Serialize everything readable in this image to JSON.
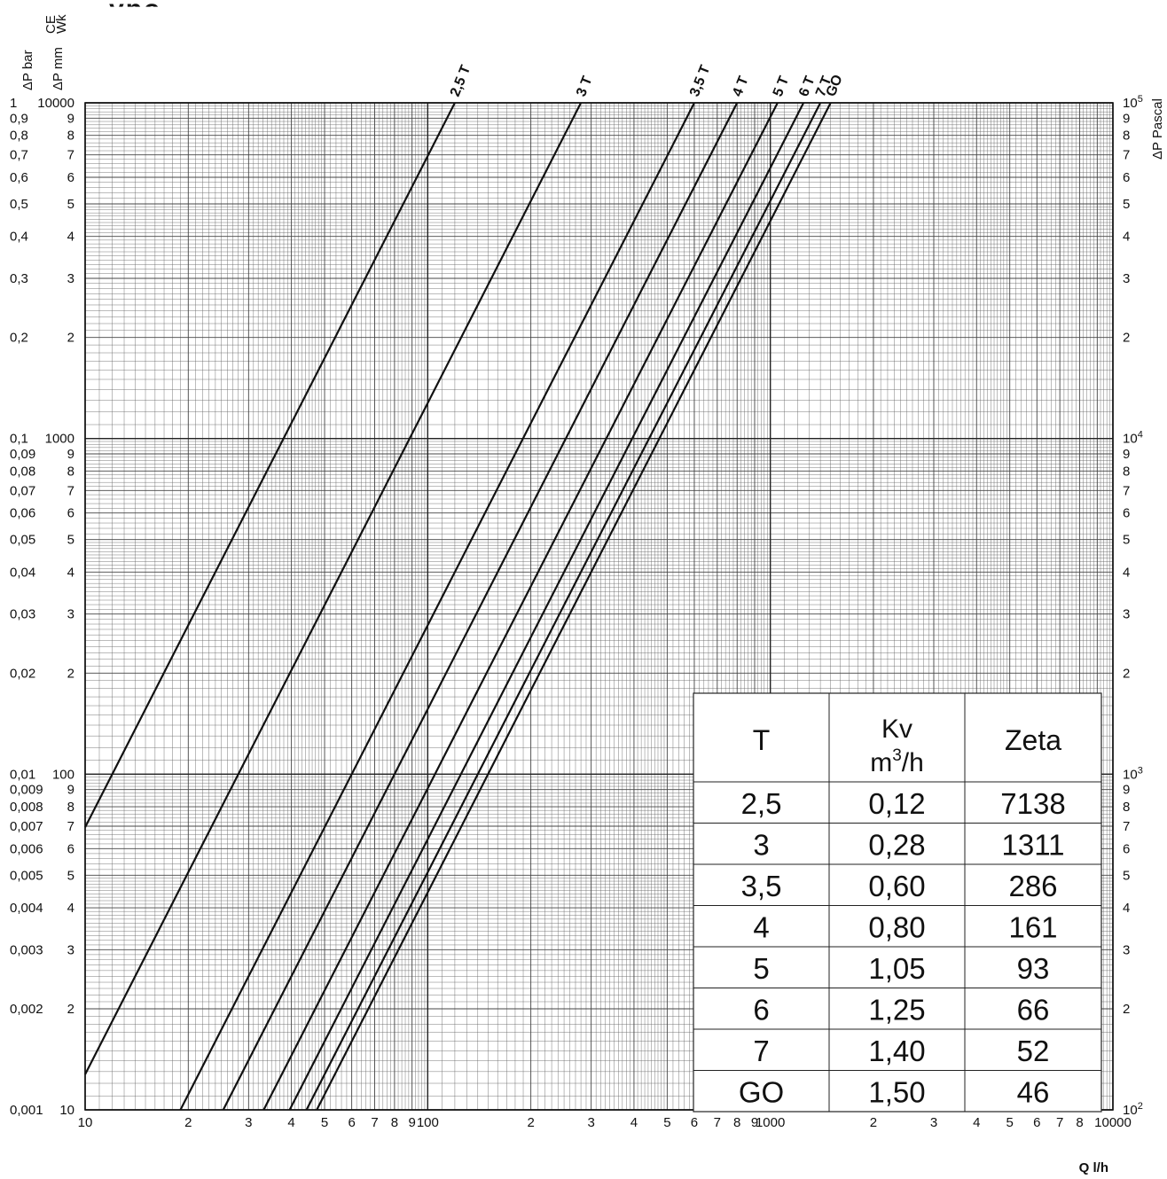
{
  "header": {
    "title_fragment": "...ypo...",
    "left_axis_bar_label": "ΔP bar",
    "left_axis_mm_label": "ΔP mm",
    "left_axis_mm_sup1": "CE",
    "left_axis_mm_sup2": "Wk",
    "right_axis_label": "ΔP Pascal"
  },
  "chart_data": {
    "type": "line",
    "x_scale": "log",
    "y_scale": "log",
    "x_unit": "l/h",
    "xlabel": "Q l/h",
    "xlim": [
      10,
      10000
    ],
    "ylim_bar": [
      0.001,
      1
    ],
    "ylim_mmCE": [
      10,
      10000
    ],
    "ylim_pascal": [
      100,
      100000
    ],
    "grid": true,
    "x_tick_labels": [
      {
        "v": 10,
        "t": "10"
      },
      {
        "v": 20,
        "t": "2"
      },
      {
        "v": 30,
        "t": "3"
      },
      {
        "v": 40,
        "t": "4"
      },
      {
        "v": 50,
        "t": "5"
      },
      {
        "v": 60,
        "t": "6"
      },
      {
        "v": 70,
        "t": "7"
      },
      {
        "v": 80,
        "t": "8"
      },
      {
        "v": 90,
        "t": "9"
      },
      {
        "v": 100,
        "t": "100"
      },
      {
        "v": 200,
        "t": "2"
      },
      {
        "v": 300,
        "t": "3"
      },
      {
        "v": 400,
        "t": "4"
      },
      {
        "v": 500,
        "t": "5"
      },
      {
        "v": 600,
        "t": "6"
      },
      {
        "v": 700,
        "t": "7"
      },
      {
        "v": 800,
        "t": "8"
      },
      {
        "v": 900,
        "t": "9"
      },
      {
        "v": 1000,
        "t": "1000"
      },
      {
        "v": 2000,
        "t": "2"
      },
      {
        "v": 3000,
        "t": "3"
      },
      {
        "v": 4000,
        "t": "4"
      },
      {
        "v": 5000,
        "t": "5"
      },
      {
        "v": 6000,
        "t": "6"
      },
      {
        "v": 7000,
        "t": "7"
      },
      {
        "v": 8000,
        "t": "8"
      },
      {
        "v": 10000,
        "t": "10000"
      }
    ],
    "y_tick_labels_bar": [
      {
        "v": 1,
        "t": "1"
      },
      {
        "v": 0.9,
        "t": "0,9"
      },
      {
        "v": 0.8,
        "t": "0,8"
      },
      {
        "v": 0.7,
        "t": "0,7"
      },
      {
        "v": 0.6,
        "t": "0,6"
      },
      {
        "v": 0.5,
        "t": "0,5"
      },
      {
        "v": 0.4,
        "t": "0,4"
      },
      {
        "v": 0.3,
        "t": "0,3"
      },
      {
        "v": 0.2,
        "t": "0,2"
      },
      {
        "v": 0.1,
        "t": "0,1"
      },
      {
        "v": 0.09,
        "t": "0,09"
      },
      {
        "v": 0.08,
        "t": "0,08"
      },
      {
        "v": 0.07,
        "t": "0,07"
      },
      {
        "v": 0.06,
        "t": "0,06"
      },
      {
        "v": 0.05,
        "t": "0,05"
      },
      {
        "v": 0.04,
        "t": "0,04"
      },
      {
        "v": 0.03,
        "t": "0,03"
      },
      {
        "v": 0.02,
        "t": "0,02"
      },
      {
        "v": 0.01,
        "t": "0,01"
      },
      {
        "v": 0.009,
        "t": "0,009"
      },
      {
        "v": 0.008,
        "t": "0,008"
      },
      {
        "v": 0.007,
        "t": "0,007"
      },
      {
        "v": 0.006,
        "t": "0,006"
      },
      {
        "v": 0.005,
        "t": "0,005"
      },
      {
        "v": 0.004,
        "t": "0,004"
      },
      {
        "v": 0.003,
        "t": "0,003"
      },
      {
        "v": 0.002,
        "t": "0,002"
      },
      {
        "v": 0.001,
        "t": "0,001"
      }
    ],
    "y_tick_labels_mm": [
      {
        "v": 1,
        "t": "10000"
      },
      {
        "v": 0.9,
        "t": "9"
      },
      {
        "v": 0.8,
        "t": "8"
      },
      {
        "v": 0.7,
        "t": "7"
      },
      {
        "v": 0.6,
        "t": "6"
      },
      {
        "v": 0.5,
        "t": "5"
      },
      {
        "v": 0.4,
        "t": "4"
      },
      {
        "v": 0.3,
        "t": "3"
      },
      {
        "v": 0.2,
        "t": "2"
      },
      {
        "v": 0.1,
        "t": "1000"
      },
      {
        "v": 0.09,
        "t": "9"
      },
      {
        "v": 0.08,
        "t": "8"
      },
      {
        "v": 0.07,
        "t": "7"
      },
      {
        "v": 0.06,
        "t": "6"
      },
      {
        "v": 0.05,
        "t": "5"
      },
      {
        "v": 0.04,
        "t": "4"
      },
      {
        "v": 0.03,
        "t": "3"
      },
      {
        "v": 0.02,
        "t": "2"
      },
      {
        "v": 0.01,
        "t": "100"
      },
      {
        "v": 0.009,
        "t": "9"
      },
      {
        "v": 0.008,
        "t": "8"
      },
      {
        "v": 0.007,
        "t": "7"
      },
      {
        "v": 0.006,
        "t": "6"
      },
      {
        "v": 0.005,
        "t": "5"
      },
      {
        "v": 0.004,
        "t": "4"
      },
      {
        "v": 0.003,
        "t": "3"
      },
      {
        "v": 0.002,
        "t": "2"
      },
      {
        "v": 0.001,
        "t": "10"
      }
    ],
    "y_tick_labels_pascal": [
      {
        "v": 1,
        "t": "10",
        "sup": "5"
      },
      {
        "v": 0.9,
        "t": "9"
      },
      {
        "v": 0.8,
        "t": "8"
      },
      {
        "v": 0.7,
        "t": "7"
      },
      {
        "v": 0.6,
        "t": "6"
      },
      {
        "v": 0.5,
        "t": "5"
      },
      {
        "v": 0.4,
        "t": "4"
      },
      {
        "v": 0.3,
        "t": "3"
      },
      {
        "v": 0.2,
        "t": "2"
      },
      {
        "v": 0.1,
        "t": "10",
        "sup": "4"
      },
      {
        "v": 0.09,
        "t": "9"
      },
      {
        "v": 0.08,
        "t": "8"
      },
      {
        "v": 0.07,
        "t": "7"
      },
      {
        "v": 0.06,
        "t": "6"
      },
      {
        "v": 0.05,
        "t": "5"
      },
      {
        "v": 0.04,
        "t": "4"
      },
      {
        "v": 0.03,
        "t": "3"
      },
      {
        "v": 0.02,
        "t": "2"
      },
      {
        "v": 0.01,
        "t": "10",
        "sup": "3"
      },
      {
        "v": 0.009,
        "t": "9"
      },
      {
        "v": 0.008,
        "t": "8"
      },
      {
        "v": 0.007,
        "t": "7"
      },
      {
        "v": 0.006,
        "t": "6"
      },
      {
        "v": 0.005,
        "t": "5"
      },
      {
        "v": 0.004,
        "t": "4"
      },
      {
        "v": 0.003,
        "t": "3"
      },
      {
        "v": 0.002,
        "t": "2"
      },
      {
        "v": 0.001,
        "t": "10",
        "sup": "2"
      }
    ],
    "series": [
      {
        "name": "2,5 T",
        "kv": 0.12
      },
      {
        "name": "3 T",
        "kv": 0.28
      },
      {
        "name": "3,5 T",
        "kv": 0.6
      },
      {
        "name": "4 T",
        "kv": 0.8
      },
      {
        "name": "5 T",
        "kv": 1.05
      },
      {
        "name": "6 T",
        "kv": 1.25
      },
      {
        "name": "7 T",
        "kv": 1.4
      },
      {
        "name": "GO",
        "kv": 1.5
      }
    ],
    "table": {
      "headers": [
        "T",
        "Kv",
        "m³/h",
        "Zeta"
      ],
      "header_kv_line1": "Kv",
      "header_kv_unit_base": "m",
      "header_kv_unit_sup": "3",
      "header_kv_unit_rest": "/h",
      "rows": [
        [
          "2,5",
          "0,12",
          "7138"
        ],
        [
          "3",
          "0,28",
          "1311"
        ],
        [
          "3,5",
          "0,60",
          "286"
        ],
        [
          "4",
          "0,80",
          "161"
        ],
        [
          "5",
          "1,05",
          "93"
        ],
        [
          "6",
          "1,25",
          "66"
        ],
        [
          "7",
          "1,40",
          "52"
        ],
        [
          "GO",
          "1,50",
          "46"
        ]
      ]
    }
  }
}
